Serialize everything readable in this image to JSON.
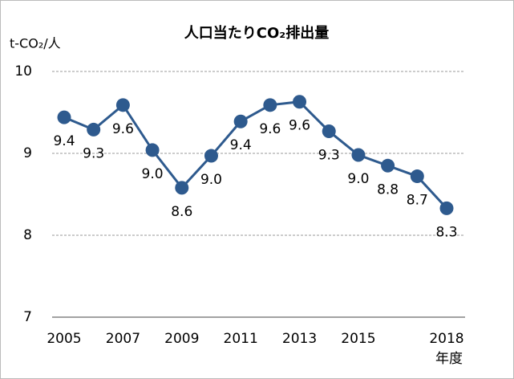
{
  "chart_data": {
    "type": "line",
    "title": "人口当たりCO₂排出量",
    "y_label": "t-CO₂/人",
    "x_label": "年度",
    "categories": [
      "2005",
      null,
      "2007",
      null,
      "2009",
      null,
      "2011",
      null,
      "2013",
      null,
      "2015",
      null,
      null,
      "2018"
    ],
    "series": [
      {
        "name": "人口当たりCO₂排出量",
        "color": "#2e5a8e",
        "values": [
          9.44,
          9.29,
          9.59,
          9.04,
          8.58,
          8.97,
          9.39,
          9.59,
          9.63,
          9.27,
          8.98,
          8.85,
          8.72,
          8.33
        ],
        "value_labels": [
          "9.4",
          "9.3",
          "9.6",
          "9.0",
          "8.6",
          "9.0",
          "9.4",
          "9.6",
          "9.6",
          "9.3",
          "9.0",
          "8.8",
          "8.7",
          "8.3"
        ]
      }
    ],
    "ylim": [
      7,
      10
    ],
    "yticks": [
      7,
      8,
      9,
      10
    ],
    "grid": true
  }
}
